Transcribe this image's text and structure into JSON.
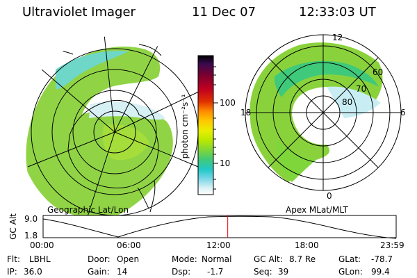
{
  "header": {
    "instrument": "Ultraviolet Imager",
    "date": "11 Dec 07",
    "time": "12:33:03 UT"
  },
  "left_panel": {
    "projection_label": "Geographic Lat/Lon"
  },
  "right_panel": {
    "coordinate_label": "Apex MLat/MLT",
    "mlt_labels": {
      "top": "12",
      "left": "18",
      "right": "6",
      "bottom": "0"
    },
    "mlat_labels": [
      "60",
      "70",
      "80"
    ]
  },
  "colorbar": {
    "unit_label": "photon cm⁻²s⁻¹",
    "ticks": [
      "100",
      "10"
    ],
    "scale": "log",
    "colors": [
      "#000000",
      "#3a0a4f",
      "#7a0030",
      "#c00020",
      "#e03000",
      "#ff8a00",
      "#ffc800",
      "#e8ef00",
      "#b8e800",
      "#7fd63a",
      "#3fc97a",
      "#22c8c8",
      "#7fd8e8",
      "#d8f0f4",
      "#ffffff"
    ]
  },
  "timeline": {
    "axis_label": "GC Alt",
    "y_ticks": [
      "9.0",
      "1.8"
    ],
    "x_ticks": [
      "00:00",
      "06:00",
      "12:00",
      "18:00",
      "23:59"
    ],
    "current_time_fraction": 0.523,
    "marker_color": "#e00000"
  },
  "status": {
    "flt_label": "Flt:",
    "flt": "LBHL",
    "ip_label": "IP:",
    "ip": "36.0",
    "door_label": "Door:",
    "door": "Open",
    "gain_label": "Gain:",
    "gain": "14",
    "mode_label": "Mode:",
    "mode": "Normal",
    "dsp_label": "Dsp:",
    "dsp": "-1.7",
    "gcalt_label": "GC Alt:",
    "gcalt": "8.7 Re",
    "seq_label": "Seq:",
    "seq": "39",
    "glat_label": "GLat:",
    "glat": "-78.7",
    "glon_label": "GLon:",
    "glon": "99.4"
  }
}
